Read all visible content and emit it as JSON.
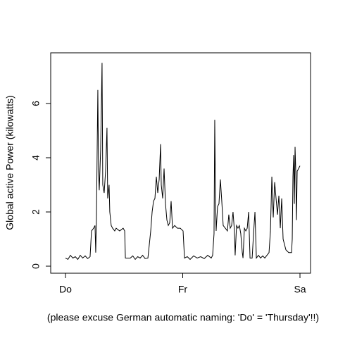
{
  "chart_data": {
    "type": "line",
    "ylabel": "Global active Power (kilowatts)",
    "xlabel": "(please excuse German automatic naming: 'Do' = 'Thursday'!!)",
    "color": "#000000",
    "x": [
      0,
      0.021,
      0.042,
      0.063,
      0.084,
      0.105,
      0.126,
      0.147,
      0.168,
      0.189,
      0.21,
      0.222,
      0.24,
      0.252,
      0.258,
      0.264,
      0.276,
      0.282,
      0.288,
      0.3,
      0.312,
      0.318,
      0.33,
      0.342,
      0.354,
      0.36,
      0.372,
      0.378,
      0.39,
      0.402,
      0.42,
      0.432,
      0.462,
      0.492,
      0.505,
      0.511,
      0.553,
      0.574,
      0.595,
      0.616,
      0.637,
      0.658,
      0.679,
      0.703,
      0.715,
      0.727,
      0.739,
      0.751,
      0.763,
      0.775,
      0.787,
      0.799,
      0.811,
      0.817,
      0.829,
      0.841,
      0.853,
      0.865,
      0.877,
      0.889,
      0.901,
      0.913,
      0.931,
      0.955,
      0.979,
      1.003,
      1.015,
      1.039,
      1.063,
      1.093,
      1.123,
      1.153,
      1.183,
      1.213,
      1.243,
      1.255,
      1.267,
      1.273,
      1.279,
      1.285,
      1.297,
      1.309,
      1.321,
      1.333,
      1.345,
      1.363,
      1.381,
      1.393,
      1.405,
      1.417,
      1.429,
      1.441,
      1.447,
      1.459,
      1.471,
      1.483,
      1.495,
      1.508,
      1.514,
      1.526,
      1.538,
      1.55,
      1.562,
      1.574,
      1.592,
      1.604,
      1.616,
      1.628,
      1.646,
      1.664,
      1.682,
      1.7,
      1.718,
      1.736,
      1.748,
      1.76,
      1.772,
      1.784,
      1.796,
      1.808,
      1.82,
      1.832,
      1.844,
      1.856,
      1.868,
      1.88,
      1.904,
      1.928,
      1.934,
      1.94,
      1.946,
      1.952,
      1.958,
      1.964,
      1.97,
      1.976,
      1.988,
      2.0
    ],
    "values": [
      0.3,
      0.25,
      0.4,
      0.3,
      0.35,
      0.25,
      0.4,
      0.3,
      0.38,
      0.28,
      0.35,
      1.3,
      1.4,
      1.5,
      0.5,
      1.8,
      6.5,
      3.5,
      2.8,
      4.3,
      7.5,
      3.0,
      2.7,
      3.5,
      5.1,
      2.5,
      3.0,
      2.0,
      1.5,
      1.4,
      1.3,
      1.4,
      1.3,
      1.4,
      1.3,
      0.3,
      0.3,
      0.38,
      0.25,
      0.35,
      0.3,
      0.4,
      0.28,
      0.3,
      0.8,
      1.3,
      2.0,
      2.4,
      2.5,
      3.3,
      2.7,
      3.2,
      4.5,
      3.0,
      2.5,
      3.6,
      2.3,
      1.7,
      1.5,
      1.6,
      2.4,
      1.4,
      1.5,
      1.4,
      1.4,
      1.3,
      0.3,
      0.35,
      0.25,
      0.38,
      0.3,
      0.35,
      0.28,
      0.4,
      0.3,
      0.4,
      1.2,
      5.4,
      2.7,
      1.3,
      2.2,
      2.3,
      3.2,
      2.4,
      1.5,
      1.4,
      1.3,
      1.9,
      1.4,
      1.5,
      2.0,
      1.3,
      0.4,
      1.5,
      1.4,
      1.5,
      1.2,
      0.5,
      0.3,
      1.4,
      1.3,
      1.4,
      2.0,
      0.3,
      0.3,
      1.2,
      2.0,
      0.3,
      0.4,
      0.3,
      0.38,
      0.3,
      0.4,
      0.5,
      1.3,
      3.3,
      1.8,
      3.1,
      2.5,
      1.9,
      2.6,
      1.4,
      2.5,
      1.0,
      0.8,
      0.6,
      0.5,
      0.5,
      1.0,
      3.3,
      4.1,
      2.3,
      4.4,
      3.5,
      1.7,
      3.5,
      3.6,
      3.7
    ],
    "xlim": [
      -0.126,
      2.09
    ],
    "ylim": [
      -0.26,
      7.87
    ],
    "xticks": [
      {
        "value": 0,
        "label": "Do"
      },
      {
        "value": 1,
        "label": "Fr"
      },
      {
        "value": 2,
        "label": "Sa"
      }
    ],
    "yticks": [
      0,
      2,
      4,
      6
    ]
  }
}
